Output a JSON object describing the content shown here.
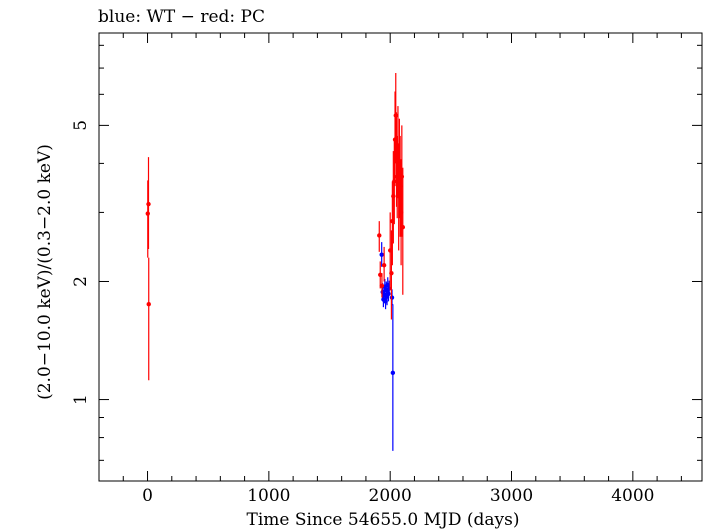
{
  "chart_data": {
    "type": "scatter",
    "title": "blue: WT − red: PC",
    "xlabel": "Time Since 54655.0 MJD (days)",
    "ylabel": "(2.0−10.0 keV)/(0.3−2.0 keV)",
    "xlim": [
      -400,
      4570
    ],
    "ylim": [
      0.62,
      8.6
    ],
    "yscale": "log",
    "grid": false,
    "x_ticks": [
      0,
      1000,
      2000,
      3000,
      4000
    ],
    "x_tick_labels": [
      "0",
      "1000",
      "2000",
      "3000",
      "4000"
    ],
    "y_ticks": [
      1,
      2,
      5
    ],
    "y_tick_labels": [
      "1",
      "2",
      "5"
    ],
    "series": [
      {
        "name": "WT",
        "color": "#0000ff",
        "points": [
          {
            "x": 1930,
            "y": 2.34,
            "lo": 2.18,
            "hi": 2.52
          },
          {
            "x": 1938,
            "y": 1.88,
            "lo": 1.78,
            "hi": 1.98
          },
          {
            "x": 1944,
            "y": 1.8,
            "lo": 1.72,
            "hi": 1.9
          },
          {
            "x": 1950,
            "y": 1.84,
            "lo": 1.76,
            "hi": 1.93
          },
          {
            "x": 1956,
            "y": 1.94,
            "lo": 1.85,
            "hi": 2.03
          },
          {
            "x": 1962,
            "y": 1.78,
            "lo": 1.7,
            "hi": 1.87
          },
          {
            "x": 1968,
            "y": 1.9,
            "lo": 1.8,
            "hi": 2.0
          },
          {
            "x": 1974,
            "y": 1.83,
            "lo": 1.74,
            "hi": 1.92
          },
          {
            "x": 1980,
            "y": 1.96,
            "lo": 1.87,
            "hi": 2.05
          },
          {
            "x": 1986,
            "y": 1.86,
            "lo": 1.78,
            "hi": 1.95
          },
          {
            "x": 1992,
            "y": 1.92,
            "lo": 1.84,
            "hi": 2.01
          },
          {
            "x": 2015,
            "y": 1.82,
            "lo": 1.74,
            "hi": 1.91
          },
          {
            "x": 2022,
            "y": 1.17,
            "lo": 0.74,
            "hi": 1.75
          }
        ]
      },
      {
        "name": "PC",
        "color": "#ff0000",
        "points": [
          {
            "x": 2,
            "y": 2.98,
            "lo": 2.3,
            "hi": 3.62
          },
          {
            "x": 8,
            "y": 3.15,
            "lo": 2.42,
            "hi": 4.15
          },
          {
            "x": 10,
            "y": 1.75,
            "lo": 1.12,
            "hi": 2.3
          },
          {
            "x": 1910,
            "y": 2.62,
            "lo": 2.38,
            "hi": 2.85
          },
          {
            "x": 1918,
            "y": 2.08,
            "lo": 1.92,
            "hi": 2.25
          },
          {
            "x": 1932,
            "y": 1.95,
            "lo": 1.82,
            "hi": 2.1
          },
          {
            "x": 1950,
            "y": 2.2,
            "lo": 2.0,
            "hi": 2.45
          },
          {
            "x": 2000,
            "y": 2.4,
            "lo": 1.9,
            "hi": 3.0
          },
          {
            "x": 2010,
            "y": 2.1,
            "lo": 1.6,
            "hi": 2.7
          },
          {
            "x": 2018,
            "y": 2.85,
            "lo": 2.2,
            "hi": 3.6
          },
          {
            "x": 2026,
            "y": 3.3,
            "lo": 2.5,
            "hi": 4.3
          },
          {
            "x": 2034,
            "y": 3.6,
            "lo": 2.8,
            "hi": 4.6
          },
          {
            "x": 2040,
            "y": 4.6,
            "lo": 3.5,
            "hi": 6.1
          },
          {
            "x": 2046,
            "y": 5.3,
            "lo": 4.0,
            "hi": 6.8
          },
          {
            "x": 2052,
            "y": 4.1,
            "lo": 3.1,
            "hi": 5.4
          },
          {
            "x": 2058,
            "y": 3.7,
            "lo": 2.9,
            "hi": 4.7
          },
          {
            "x": 2064,
            "y": 4.3,
            "lo": 3.3,
            "hi": 5.6
          },
          {
            "x": 2070,
            "y": 3.3,
            "lo": 2.4,
            "hi": 4.5
          },
          {
            "x": 2076,
            "y": 3.9,
            "lo": 2.9,
            "hi": 5.2
          },
          {
            "x": 2082,
            "y": 3.5,
            "lo": 2.6,
            "hi": 4.7
          },
          {
            "x": 2090,
            "y": 3.0,
            "lo": 2.2,
            "hi": 4.1
          },
          {
            "x": 2096,
            "y": 3.7,
            "lo": 2.6,
            "hi": 5.0
          },
          {
            "x": 2104,
            "y": 2.75,
            "lo": 1.85,
            "hi": 3.9
          }
        ]
      }
    ]
  }
}
